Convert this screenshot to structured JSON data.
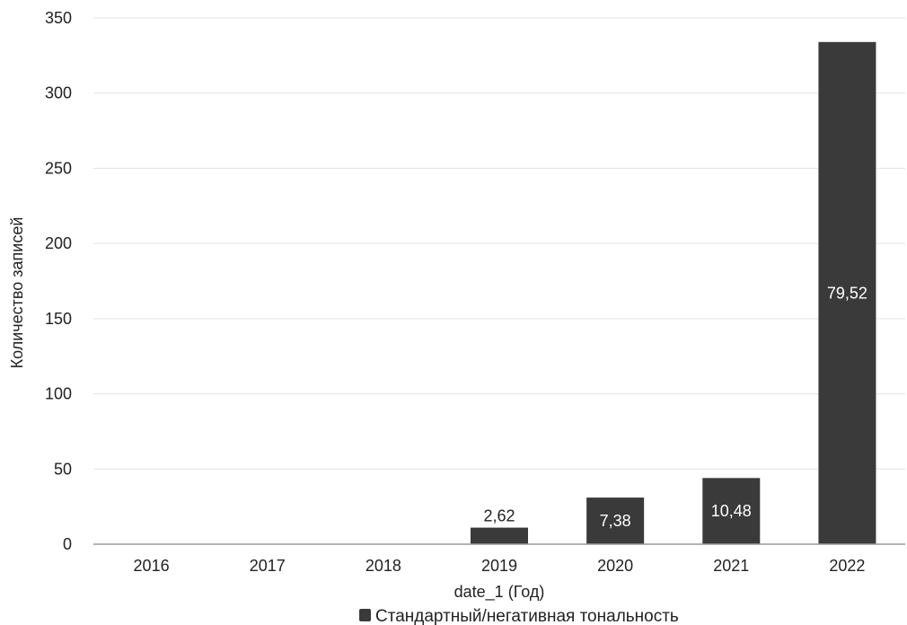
{
  "chart_data": {
    "type": "bar",
    "categories": [
      "2016",
      "2017",
      "2018",
      "2019",
      "2020",
      "2021",
      "2022"
    ],
    "series": [
      {
        "name": "Стандартный/негативная тональность",
        "values": [
          0,
          0,
          0,
          11,
          31,
          44,
          334
        ],
        "data_labels": [
          "",
          "",
          "",
          "2,62",
          "7,38",
          "10,48",
          "79,52"
        ]
      }
    ],
    "xlabel": "date_1 (Год)",
    "ylabel": "Количество записей",
    "ylim": [
      0,
      350
    ],
    "yticks": [
      0,
      50,
      100,
      150,
      200,
      250,
      300,
      350
    ],
    "grid": true,
    "legend_position": "bottom",
    "colors": {
      "bar": "#3a3a3a",
      "grid": "#e3e3e3",
      "axis": "#9a9a9a"
    }
  }
}
